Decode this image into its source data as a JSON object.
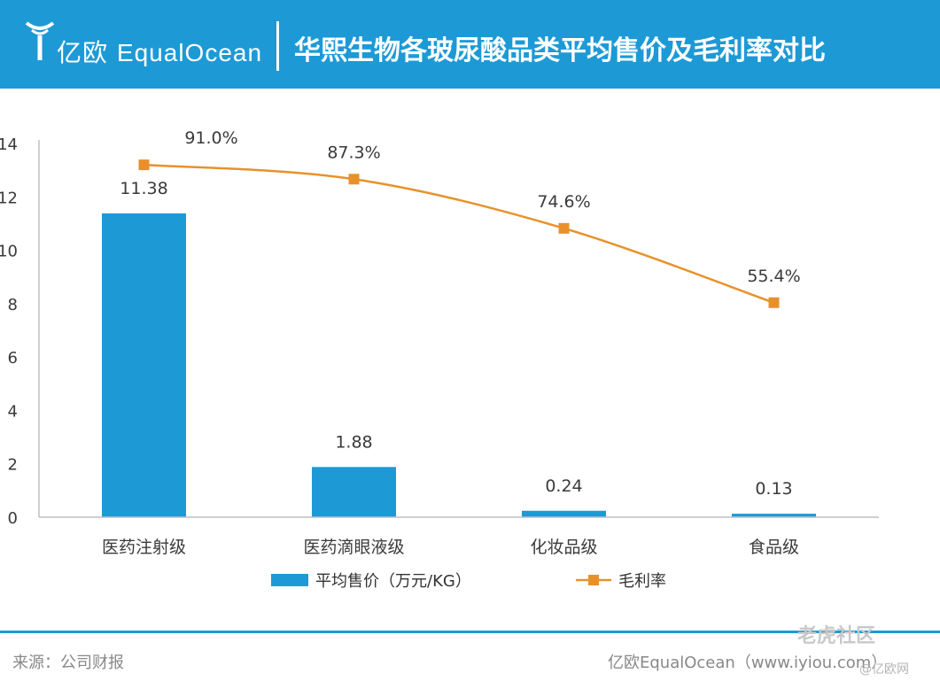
{
  "header": {
    "logo_cn": "亿欧",
    "logo_en": "EqualOcean",
    "title": "华熙生物各玻尿酸品类平均售价及毛利率对比",
    "brand_color": "#1d9ad6"
  },
  "chart_data": {
    "type": "bar",
    "title": "华熙生物各玻尿酸品类平均售价及毛利率对比",
    "categories": [
      "医药注射级",
      "医药滴眼液级",
      "化妆品级",
      "食品级"
    ],
    "series": [
      {
        "name": "平均售价（万元/KG）",
        "kind": "bar",
        "values": [
          11.38,
          1.88,
          0.24,
          0.13
        ],
        "labels": [
          "11.38",
          "1.88",
          "0.24",
          "0.13"
        ],
        "color": "#1d9ad6"
      },
      {
        "name": "毛利率",
        "kind": "line",
        "values": [
          91.0,
          87.3,
          74.6,
          55.4
        ],
        "labels": [
          "91.0%",
          "87.3%",
          "74.6%",
          "55.4%"
        ],
        "color": "#e8912b"
      }
    ],
    "yticks": [
      "0",
      "2",
      "4",
      "6",
      "8",
      "10",
      "12",
      "14"
    ],
    "ylim": [
      0,
      14
    ],
    "xlabel": "",
    "ylabel": "",
    "legend": "bottom-center",
    "grid": false
  },
  "legend": {
    "bar_label": "平均售价（万元/KG）",
    "line_label": "毛利率"
  },
  "footer": {
    "source": "来源：公司财报",
    "brand": "亿欧EqualOcean（www.iyiou.com）",
    "watermark": "老虎社区",
    "watermark_sub": "@亿欧网"
  }
}
